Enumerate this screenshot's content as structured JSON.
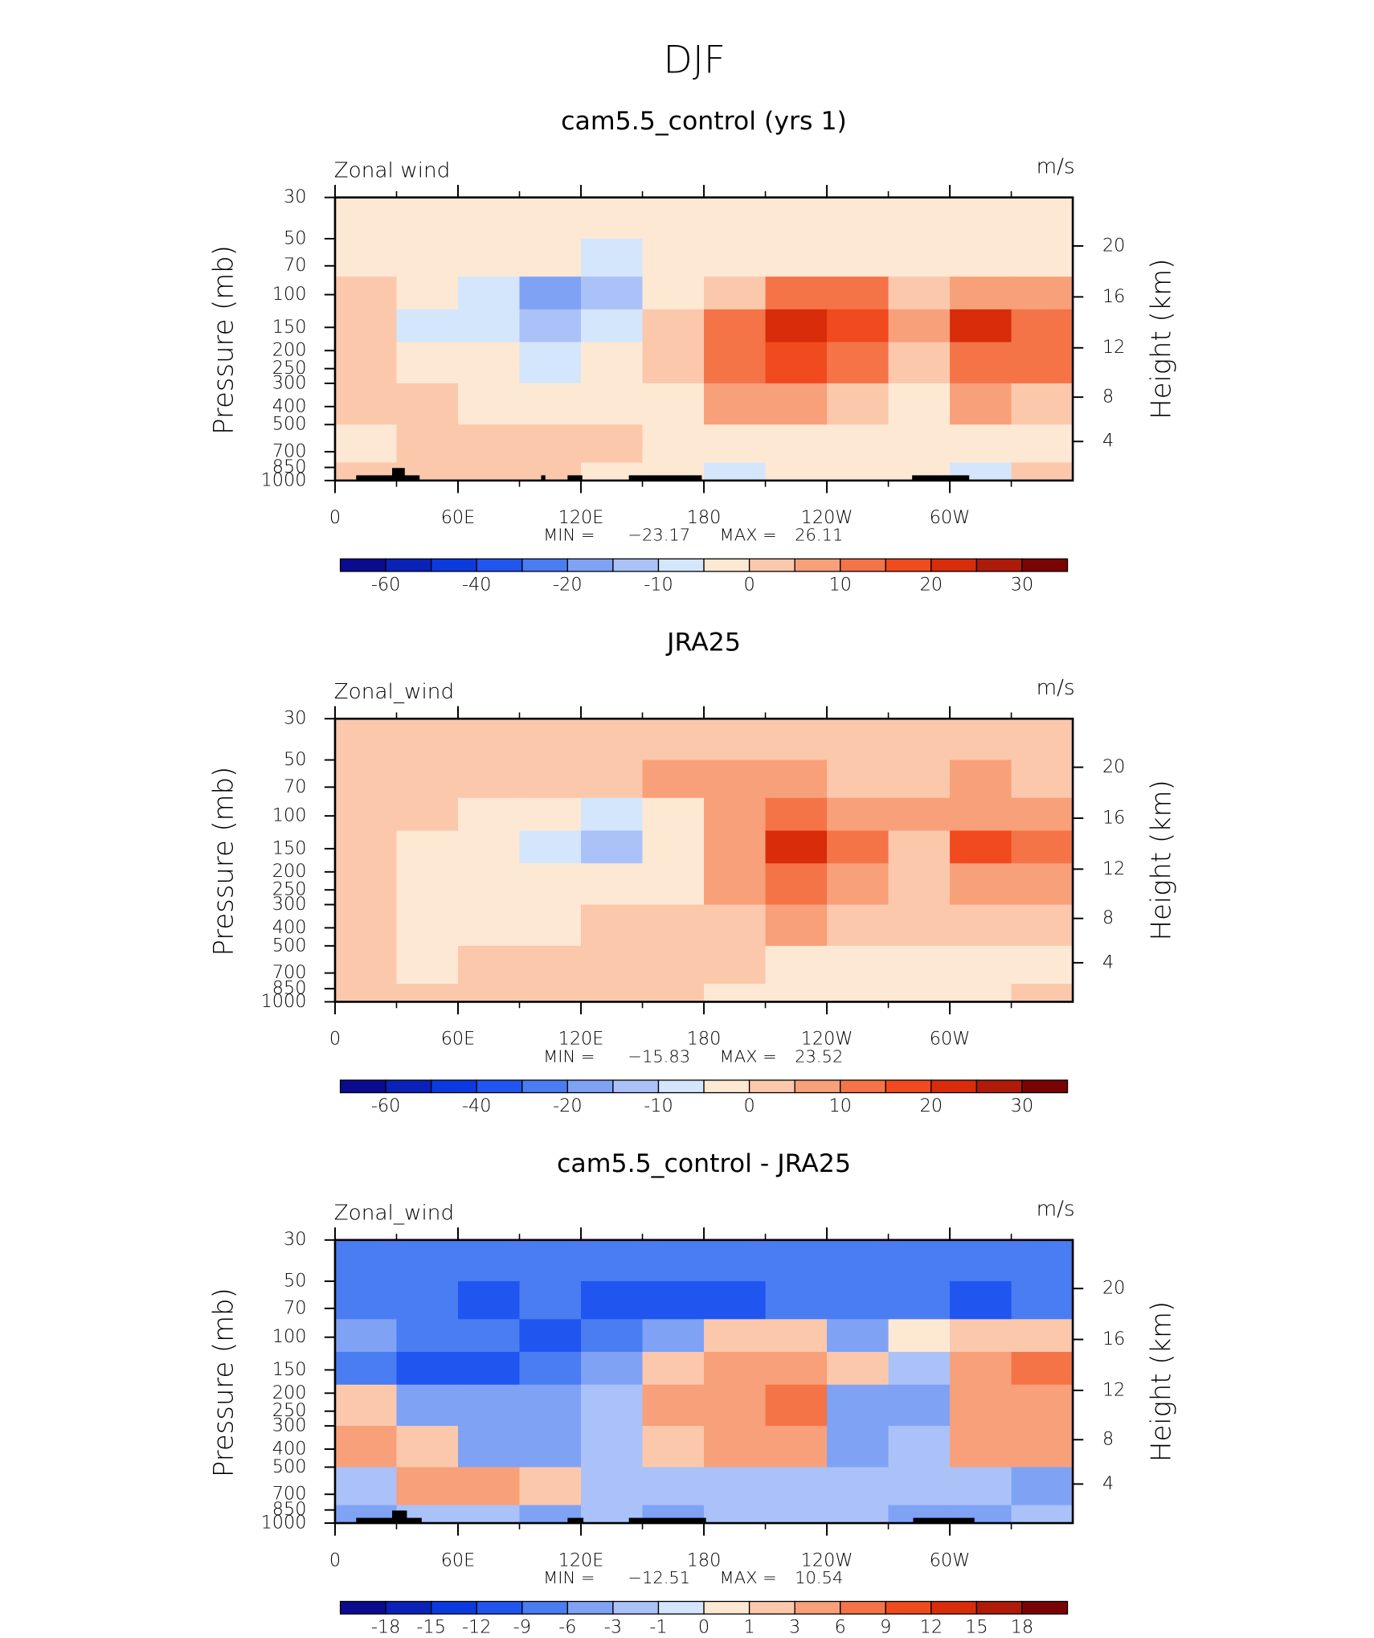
{
  "page_title": "DJF",
  "chart_data": [
    {
      "type": "contour",
      "title": "cam5.5_control (yrs 1)",
      "field_label": "Zonal wind",
      "units": "m/s",
      "ylabel": "Pressure (mb)",
      "y2label": "Height (km)",
      "log_y": true,
      "xlim": [
        0,
        360
      ],
      "xticks": [
        0,
        {
          "value": 60,
          "label": "60E"
        },
        {
          "value": 120,
          "label": "120E"
        },
        180,
        {
          "value": 240,
          "label": "120W"
        },
        {
          "value": 300,
          "label": "60W"
        }
      ],
      "ylim": [
        1000,
        30
      ],
      "yticks": [
        30,
        50,
        70,
        100,
        150,
        200,
        250,
        300,
        400,
        500,
        700,
        850,
        1000
      ],
      "y2ticks": [
        4,
        8,
        12,
        16,
        20
      ],
      "lon_edges": [
        0,
        30,
        60,
        90,
        120,
        150,
        180,
        210,
        240,
        270,
        300,
        330,
        360
      ],
      "p_edges": [
        30,
        50,
        80,
        120,
        180,
        300,
        500,
        800,
        1000
      ],
      "values": [
        [
          -3,
          -3,
          -3,
          -3,
          -3,
          -3,
          -3,
          -3,
          -3,
          -3,
          -3,
          -3
        ],
        [
          -3,
          -3,
          -3,
          -3,
          -6,
          -3,
          -3,
          -3,
          -3,
          -3,
          -3,
          -3
        ],
        [
          2,
          -3,
          -7,
          -15,
          -10,
          -3,
          5,
          14,
          12,
          5,
          8,
          6
        ],
        [
          2,
          -7,
          -7,
          -12,
          -7,
          3,
          15,
          24,
          17,
          6,
          22,
          15
        ],
        [
          2,
          -3,
          -3,
          -7,
          -3,
          3,
          12,
          16,
          12,
          2,
          14,
          12
        ],
        [
          2,
          2,
          -3,
          -3,
          -3,
          -3,
          7,
          7,
          3,
          -3,
          7,
          3
        ],
        [
          -3,
          2,
          3,
          4,
          2,
          -3,
          -3,
          -3,
          -3,
          -3,
          -3,
          -3
        ],
        [
          2,
          2,
          2,
          2,
          -3,
          -3,
          -7,
          -3,
          -3,
          -3,
          -7,
          2
        ]
      ],
      "levels": [
        -60,
        -50,
        -40,
        -30,
        -20,
        -15,
        -10,
        -5,
        0,
        5,
        10,
        15,
        20,
        25,
        30
      ],
      "colorbar_ticks": [
        -60,
        -40,
        -20,
        -10,
        0,
        10,
        20,
        30
      ],
      "colors": [
        "#0b0b8f",
        "#0a22b8",
        "#0b3ae0",
        "#2155f0",
        "#4a7cf2",
        "#7fa2f5",
        "#aac2f8",
        "#d4e6fc",
        "#fde8d4",
        "#fbc8ac",
        "#f8a07a",
        "#f47447",
        "#f04a1e",
        "#d82c0a",
        "#b01a08",
        "#7a0404"
      ],
      "min_text": "MIN =",
      "min": {
        "value": -23.17,
        "label": "−23.17"
      },
      "max_text": "MAX =",
      "max": 26.11
    },
    {
      "type": "contour",
      "title": "JRA25",
      "field_label": "Zonal_wind",
      "units": "m/s",
      "ylabel": "Pressure (mb)",
      "y2label": "Height (km)",
      "log_y": true,
      "xlim": [
        0,
        360
      ],
      "xticks": [
        0,
        {
          "value": 60,
          "label": "60E"
        },
        {
          "value": 120,
          "label": "120E"
        },
        180,
        {
          "value": 240,
          "label": "120W"
        },
        {
          "value": 300,
          "label": "60W"
        }
      ],
      "ylim": [
        1000,
        30
      ],
      "yticks": [
        30,
        50,
        70,
        100,
        150,
        200,
        250,
        300,
        400,
        500,
        700,
        850,
        1000
      ],
      "y2ticks": [
        4,
        8,
        12,
        16,
        20
      ],
      "lon_edges": [
        0,
        30,
        60,
        90,
        120,
        150,
        180,
        210,
        240,
        270,
        300,
        330,
        360
      ],
      "p_edges": [
        30,
        50,
        80,
        120,
        180,
        300,
        500,
        800,
        1000
      ],
      "values": [
        [
          2,
          2,
          2,
          2,
          2,
          2,
          2,
          2,
          2,
          2,
          2,
          2
        ],
        [
          2,
          2,
          2,
          2,
          2,
          7,
          7,
          7,
          2,
          2,
          7,
          2
        ],
        [
          2,
          2,
          -3,
          -3,
          -6,
          -3,
          7,
          12,
          7,
          7,
          7,
          7
        ],
        [
          2,
          -3,
          -3,
          -7,
          -12,
          -3,
          7,
          22,
          12,
          3,
          17,
          12
        ],
        [
          2,
          -3,
          -3,
          -3,
          -3,
          -3,
          7,
          13,
          7,
          3,
          10,
          7
        ],
        [
          2,
          -3,
          -3,
          -3,
          2,
          2,
          4,
          7,
          4,
          2,
          3,
          2
        ],
        [
          2,
          -3,
          2,
          3,
          3,
          2,
          2,
          -3,
          -3,
          -3,
          -3,
          -3
        ],
        [
          2,
          2,
          2,
          3,
          2,
          2,
          -3,
          -3,
          -3,
          -3,
          -3,
          2
        ]
      ],
      "levels": [
        -60,
        -50,
        -40,
        -30,
        -20,
        -15,
        -10,
        -5,
        0,
        5,
        10,
        15,
        20,
        25,
        30
      ],
      "colorbar_ticks": [
        -60,
        -40,
        -20,
        -10,
        0,
        10,
        20,
        30
      ],
      "colors": [
        "#0b0b8f",
        "#0a22b8",
        "#0b3ae0",
        "#2155f0",
        "#4a7cf2",
        "#7fa2f5",
        "#aac2f8",
        "#d4e6fc",
        "#fde8d4",
        "#fbc8ac",
        "#f8a07a",
        "#f47447",
        "#f04a1e",
        "#d82c0a",
        "#b01a08",
        "#7a0404"
      ],
      "min_text": "MIN =",
      "min": {
        "value": -15.83,
        "label": "−15.83"
      },
      "max_text": "MAX =",
      "max": 23.52
    },
    {
      "type": "contour",
      "title": "cam5.5_control - JRA25",
      "field_label": "Zonal_wind",
      "units": "m/s",
      "ylabel": "Pressure (mb)",
      "y2label": "Height (km)",
      "log_y": true,
      "xlim": [
        0,
        360
      ],
      "xticks": [
        0,
        {
          "value": 60,
          "label": "60E"
        },
        {
          "value": 120,
          "label": "120E"
        },
        180,
        {
          "value": 240,
          "label": "120W"
        },
        {
          "value": 300,
          "label": "60W"
        }
      ],
      "ylim": [
        1000,
        30
      ],
      "yticks": [
        30,
        50,
        70,
        100,
        150,
        200,
        250,
        300,
        400,
        500,
        700,
        850,
        1000
      ],
      "y2ticks": [
        4,
        8,
        12,
        16,
        20
      ],
      "lon_edges": [
        0,
        30,
        60,
        90,
        120,
        150,
        180,
        210,
        240,
        270,
        300,
        330,
        360
      ],
      "p_edges": [
        30,
        50,
        80,
        120,
        180,
        300,
        500,
        800,
        1000
      ],
      "values": [
        [
          -8,
          -8,
          -8,
          -8,
          -8,
          -8,
          -8,
          -8,
          -8,
          -8,
          -8,
          -8
        ],
        [
          -8,
          -8,
          -11,
          -8,
          -11,
          -11,
          -11,
          -8,
          -8,
          -8,
          -11,
          -8
        ],
        [
          -4,
          -8,
          -8,
          -11,
          -8,
          -4,
          2,
          2,
          -4,
          0.5,
          2,
          2
        ],
        [
          -8,
          -10,
          -10,
          -8,
          -4,
          2,
          4,
          4,
          2,
          -2,
          4,
          7
        ],
        [
          2,
          -4,
          -4,
          -4,
          -2,
          4,
          5,
          7,
          -4,
          -4,
          4,
          4
        ],
        [
          4,
          2,
          -4,
          -4,
          -2,
          2,
          4,
          4,
          -4,
          -2,
          4,
          4
        ],
        [
          -2,
          4,
          4,
          2,
          -2,
          -2,
          -2,
          -2,
          -2,
          -2,
          -2,
          -4
        ],
        [
          -4,
          -2,
          -2,
          -4,
          -2,
          -4,
          -2,
          -2,
          -2,
          -4,
          -4,
          -2
        ]
      ],
      "levels": [
        -18,
        -15,
        -12,
        -9,
        -6,
        -3,
        -1,
        0,
        1,
        3,
        6,
        9,
        12,
        15,
        18
      ],
      "colorbar_ticks": [
        -18,
        -15,
        -12,
        -9,
        -6,
        -3,
        -1,
        0,
        1,
        3,
        6,
        9,
        12,
        15,
        18
      ],
      "colors": [
        "#0b0b8f",
        "#0a22b8",
        "#0b3ae0",
        "#2155f0",
        "#4a7cf2",
        "#7fa2f5",
        "#aac2f8",
        "#d4e6fc",
        "#fde8d4",
        "#fbc8ac",
        "#f8a07a",
        "#f47447",
        "#f04a1e",
        "#d82c0a",
        "#b01a08",
        "#7a0404"
      ],
      "min_text": "MIN =",
      "min": {
        "value": -12.51,
        "label": "−12.51"
      },
      "max_text": "MAX =",
      "max": 10.54
    }
  ]
}
